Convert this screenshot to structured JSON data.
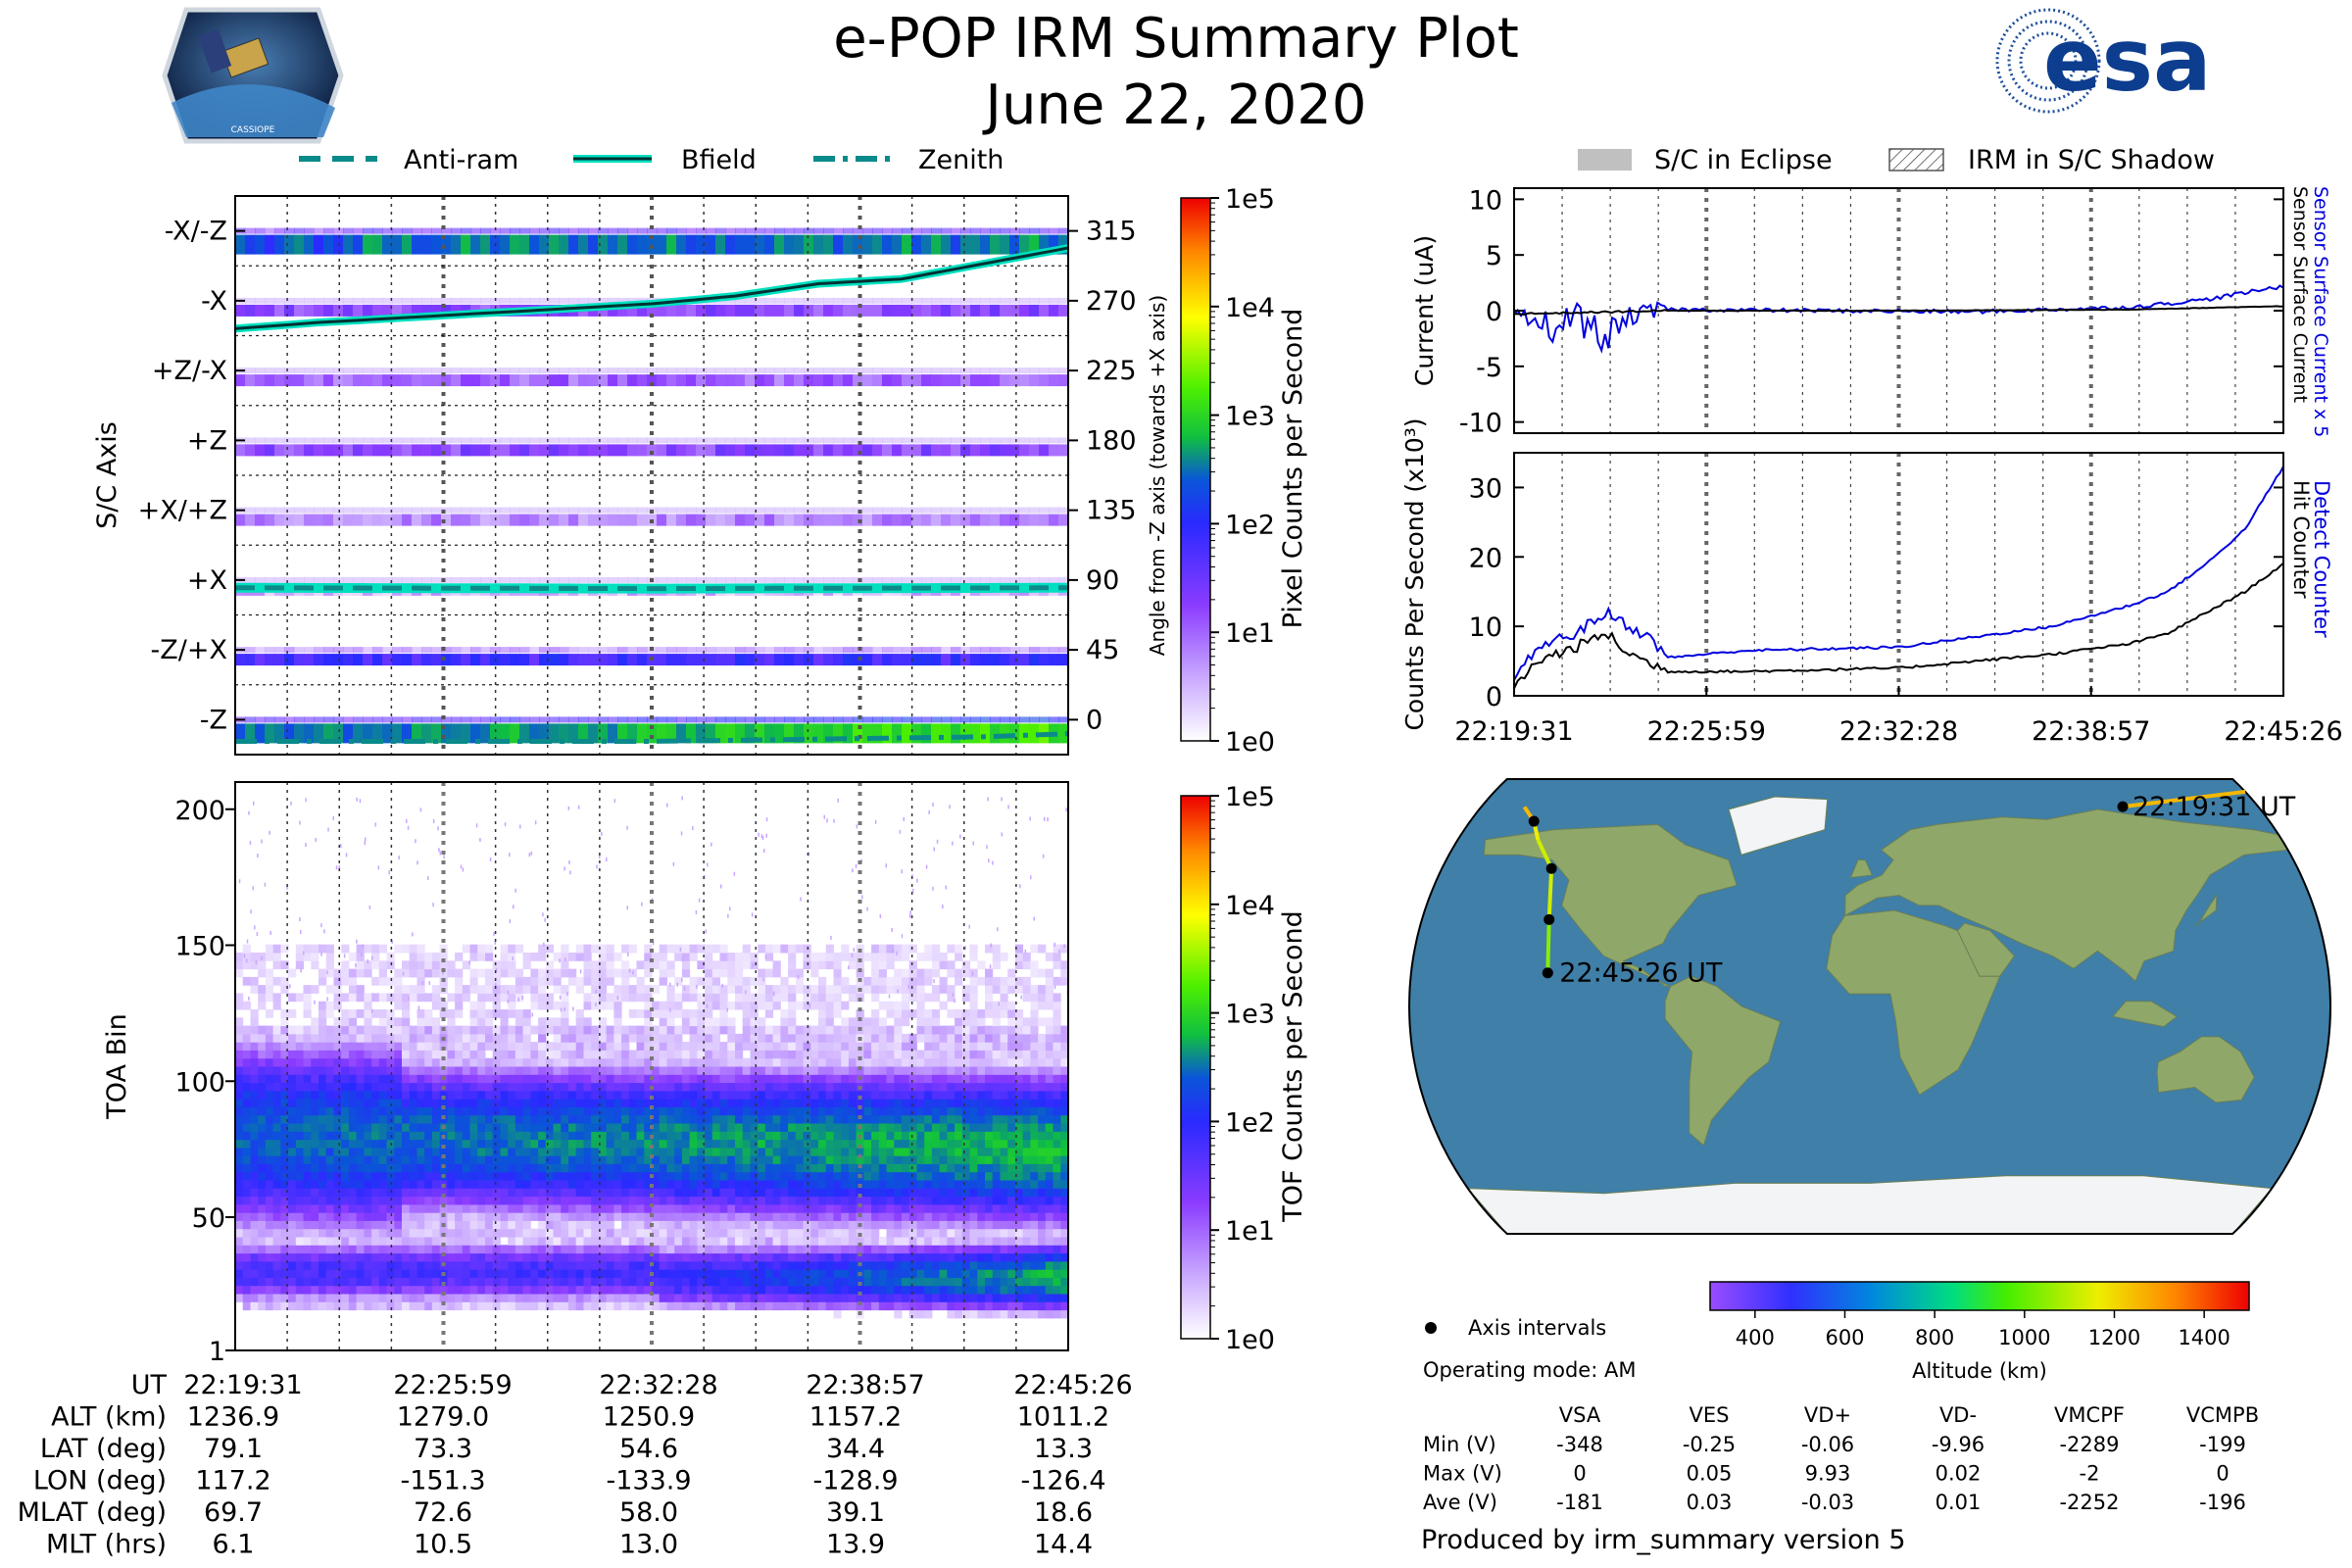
{
  "header": {
    "title": "e-POP IRM Summary Plot",
    "date": "June 22, 2020",
    "mission_badge": "CASSIOPE",
    "agency_logo": "esa"
  },
  "legend_top": [
    "Anti-ram",
    "Bfield",
    "Zenith"
  ],
  "legend_right": [
    "S/C in Eclipse",
    "IRM in S/C Shadow"
  ],
  "colors": {
    "antiram": "#0a8a8a",
    "bfield": "#00e0c0",
    "zenith": "#0a8a8a",
    "sensor_surface_current_x5": "#0000dd",
    "sensor_surface_current": "#000000",
    "detect_counter": "#0000dd",
    "hit_counter": "#000000",
    "ocean": "#3f7fa8",
    "land": "#8fa86a"
  },
  "time_ticks": [
    "22:19:31",
    "22:25:59",
    "22:32:28",
    "22:38:57",
    "22:45:26"
  ],
  "chart_data": [
    {
      "id": "sc-axis",
      "type": "heatmap",
      "ylabel": "S/C Axis",
      "y2label": "Angle from -Z axis (towards +X axis)",
      "row_labels": [
        "-X/-Z",
        "-X",
        "+Z/-X",
        "+Z",
        "+X/+Z",
        "+X",
        "-Z/+X",
        "-Z"
      ],
      "angle_ticks": [
        315,
        270,
        225,
        180,
        135,
        90,
        45,
        0
      ],
      "angle_range": [
        -22.5,
        337.5
      ],
      "colorbar": {
        "label": "Pixel Counts per Second",
        "ticks": [
          "1e0",
          "1e1",
          "1e2",
          "1e3",
          "1e4",
          "1e5"
        ]
      },
      "row_intensity_log": [
        2.5,
        1.2,
        1.0,
        1.2,
        0.8,
        0.5,
        1.8,
        3.0
      ],
      "bfield_angle": {
        "t": [
          0,
          0.1,
          0.2,
          0.3,
          0.4,
          0.5,
          0.6,
          0.7,
          0.8,
          0.9,
          1.0
        ],
        "v": [
          252,
          256,
          259,
          262,
          265,
          268,
          273,
          281,
          284,
          294,
          304
        ]
      },
      "antiram_angle": {
        "t": [
          0,
          0.5,
          1.0
        ],
        "v": [
          85,
          84.5,
          85
        ]
      },
      "zenith_angle": {
        "t": [
          0,
          0.5,
          0.9,
          1.0
        ],
        "v": [
          -14,
          -14,
          -11,
          -9
        ]
      }
    },
    {
      "id": "toa",
      "type": "heatmap",
      "ylabel": "TOA Bin",
      "yticks": [
        1,
        50,
        100,
        150,
        200
      ],
      "ylim": [
        1,
        210
      ],
      "colorbar": {
        "label": "TOF Counts per Second",
        "ticks": [
          "1e0",
          "1e1",
          "1e2",
          "1e3",
          "1e4",
          "1e5"
        ]
      },
      "bands": [
        {
          "center": 80,
          "width": 20,
          "peak_log_start": 2.4,
          "peak_log_end": 2.8
        },
        {
          "center": 30,
          "width": 10,
          "peak_log_start": 1.8,
          "peak_log_end": 2.7
        }
      ]
    },
    {
      "id": "current",
      "type": "line",
      "ylabel": "Current (uA)",
      "ylim": [
        -11,
        11
      ],
      "yticks": [
        10,
        5,
        0,
        -5,
        -10
      ],
      "series": [
        {
          "name": "Sensor Surface Current x 5",
          "t": [
            0,
            0.02,
            0.05,
            0.08,
            0.12,
            0.15,
            0.2,
            0.4,
            0.6,
            0.8,
            0.9,
            1.0
          ],
          "values": [
            -1.5,
            -0.8,
            -1.5,
            -0.5,
            -2.5,
            -0.5,
            0.1,
            0.0,
            -0.1,
            0.3,
            1.0,
            2.2
          ]
        },
        {
          "name": "Sensor Surface Current",
          "t": [
            0,
            0.2,
            0.5,
            0.8,
            1.0
          ],
          "values": [
            -0.3,
            0.0,
            0.0,
            0.1,
            0.4
          ]
        }
      ]
    },
    {
      "id": "counts",
      "type": "line",
      "ylabel": "Counts Per Second (x10³)",
      "ylim": [
        0,
        35
      ],
      "yticks": [
        0,
        10,
        20,
        30
      ],
      "series": [
        {
          "name": "Detect Counter",
          "t": [
            0,
            0.03,
            0.08,
            0.12,
            0.15,
            0.18,
            0.2,
            0.3,
            0.5,
            0.6,
            0.7,
            0.8,
            0.85,
            0.9,
            0.95,
            1.0
          ],
          "values": [
            2,
            7,
            9,
            12,
            10,
            8,
            5.5,
            6.5,
            7,
            8.5,
            10,
            13,
            15,
            19,
            24,
            33
          ]
        },
        {
          "name": "Hit Counter",
          "t": [
            0,
            0.03,
            0.08,
            0.12,
            0.15,
            0.2,
            0.3,
            0.5,
            0.6,
            0.7,
            0.8,
            0.85,
            0.9,
            0.95,
            1.0
          ],
          "values": [
            1,
            5,
            7,
            9,
            6,
            3.5,
            3.5,
            4,
            5,
            6,
            7.5,
            9,
            12,
            15,
            19
          ]
        }
      ]
    }
  ],
  "map": {
    "labels": [
      "22:19:31 UT",
      "22:45:26 UT"
    ],
    "axis_intervals_label": "Axis intervals",
    "operating_mode": "Operating mode: AM",
    "track": {
      "lon": [
        117.2,
        180,
        -160,
        -151.3,
        -145,
        -133.9,
        -128.9,
        -126.4
      ],
      "lat": [
        79.1,
        85,
        79,
        73.3,
        66,
        54.6,
        34.4,
        13.3
      ]
    },
    "interval_points": {
      "lon": [
        117.2,
        -151.3,
        -133.9,
        -128.9,
        -126.4
      ],
      "lat": [
        79.1,
        73.3,
        54.6,
        34.4,
        13.3
      ]
    },
    "altitude_colorbar": {
      "label": "Altitude (km)",
      "ticks": [
        "400",
        "600",
        "800",
        "1000",
        "1200",
        "1400"
      ],
      "range": [
        300,
        1500
      ]
    }
  },
  "params": {
    "row_labels": [
      "UT",
      "ALT (km)",
      "LAT (deg)",
      "LON (deg)",
      "MLAT (deg)",
      "MLT (hrs)"
    ],
    "columns": [
      [
        "22:19:31",
        "1236.9",
        "79.1",
        "117.2",
        "69.7",
        "6.1"
      ],
      [
        "22:25:59",
        "1279.0",
        "73.3",
        "-151.3",
        "72.6",
        "10.5"
      ],
      [
        "22:32:28",
        "1250.9",
        "54.6",
        "-133.9",
        "58.0",
        "13.0"
      ],
      [
        "22:38:57",
        "1157.2",
        "34.4",
        "-128.9",
        "39.1",
        "13.9"
      ],
      [
        "22:45:26",
        "1011.2",
        "13.3",
        "-126.4",
        "18.6",
        "14.4"
      ]
    ]
  },
  "voltages": {
    "headers": [
      "VSA",
      "VES",
      "VD+",
      "VD-",
      "VMCPF",
      "VCMPB"
    ],
    "rows": [
      {
        "label": "Min (V)",
        "values": [
          "-348",
          "-0.25",
          "-0.06",
          "-9.96",
          "-2289",
          "-199"
        ]
      },
      {
        "label": "Max (V)",
        "values": [
          "0",
          "0.05",
          "9.93",
          "0.02",
          "-2",
          "0"
        ]
      },
      {
        "label": "Ave (V)",
        "values": [
          "-181",
          "0.03",
          "-0.03",
          "0.01",
          "-2252",
          "-196"
        ]
      }
    ]
  },
  "footer": "Produced by irm_summary version 5"
}
